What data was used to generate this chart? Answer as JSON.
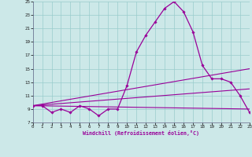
{
  "xlabel": "Windchill (Refroidissement éolien,°C)",
  "bg_color": "#cce8e8",
  "grid_color": "#99cccc",
  "line_color": "#990099",
  "xmin": 0,
  "xmax": 23,
  "ymin": 7,
  "ymax": 25,
  "yticks": [
    7,
    9,
    11,
    13,
    15,
    17,
    19,
    21,
    23,
    25
  ],
  "xticks": [
    0,
    1,
    2,
    3,
    4,
    5,
    6,
    7,
    8,
    9,
    10,
    11,
    12,
    13,
    14,
    15,
    16,
    17,
    18,
    19,
    20,
    21,
    22,
    23
  ],
  "main_x": [
    0,
    1,
    2,
    3,
    4,
    5,
    6,
    7,
    8,
    9,
    10,
    11,
    12,
    13,
    14,
    15,
    16,
    17,
    18,
    19,
    20,
    21,
    22,
    23
  ],
  "main_y": [
    9.5,
    9.5,
    8.5,
    9.0,
    8.5,
    9.5,
    9.0,
    8.0,
    9.0,
    9.0,
    12.5,
    17.5,
    20.0,
    22.0,
    24.0,
    25.0,
    23.5,
    20.5,
    15.5,
    13.5,
    13.5,
    13.0,
    11.0,
    8.5
  ],
  "line2_x": [
    0,
    23
  ],
  "line2_y": [
    9.5,
    9.0
  ],
  "line3_x": [
    0,
    23
  ],
  "line3_y": [
    9.5,
    12.0
  ],
  "line4_x": [
    0,
    23
  ],
  "line4_y": [
    9.5,
    15.0
  ]
}
